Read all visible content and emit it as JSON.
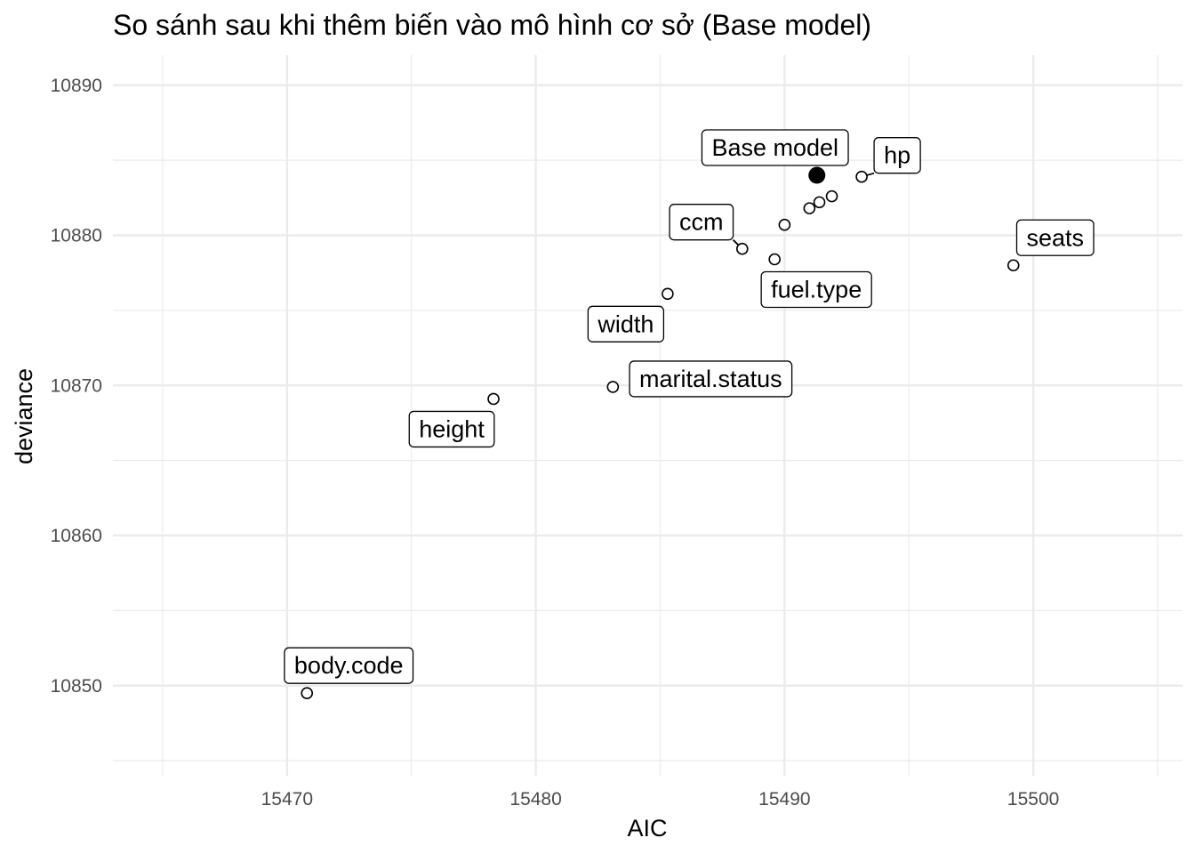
{
  "chart_data": {
    "type": "scatter",
    "title": "So sánh sau khi thêm biến vào mô hình cơ sở (Base model)",
    "xlabel": "AIC",
    "ylabel": "deviance",
    "xlim": [
      15463.0,
      15506.0
    ],
    "ylim": [
      10844.0,
      10892.0
    ],
    "x_ticks": [
      15470,
      15480,
      15490,
      15500
    ],
    "x_tick_labels": [
      "15470",
      "15480",
      "15490",
      "15500"
    ],
    "y_ticks": [
      10850,
      10860,
      10870,
      10880,
      10890
    ],
    "y_tick_labels": [
      "10850",
      "10860",
      "10870",
      "10880",
      "10890"
    ],
    "grid": true,
    "points": [
      {
        "x": 15491.3,
        "y": 10884.0,
        "label": "Base model",
        "base": true
      },
      {
        "x": 15493.1,
        "y": 10883.9,
        "label": "hp"
      },
      {
        "x": 15488.3,
        "y": 10879.1,
        "label": "ccm"
      },
      {
        "x": 15499.2,
        "y": 10878.0,
        "label": "seats"
      },
      {
        "x": 15489.6,
        "y": 10878.4,
        "label": "fuel.type"
      },
      {
        "x": 15485.3,
        "y": 10876.1,
        "label": "width"
      },
      {
        "x": 15483.1,
        "y": 10869.9,
        "label": "marital.status"
      },
      {
        "x": 15478.3,
        "y": 10869.1,
        "label": "height"
      },
      {
        "x": 15470.8,
        "y": 10849.5,
        "label": "body.code"
      },
      {
        "x": 15491.0,
        "y": 10881.8,
        "label": ""
      },
      {
        "x": 15491.4,
        "y": 10882.2,
        "label": ""
      },
      {
        "x": 15491.9,
        "y": 10882.6,
        "label": ""
      },
      {
        "x": 15490.0,
        "y": 10880.7,
        "label": ""
      }
    ]
  }
}
